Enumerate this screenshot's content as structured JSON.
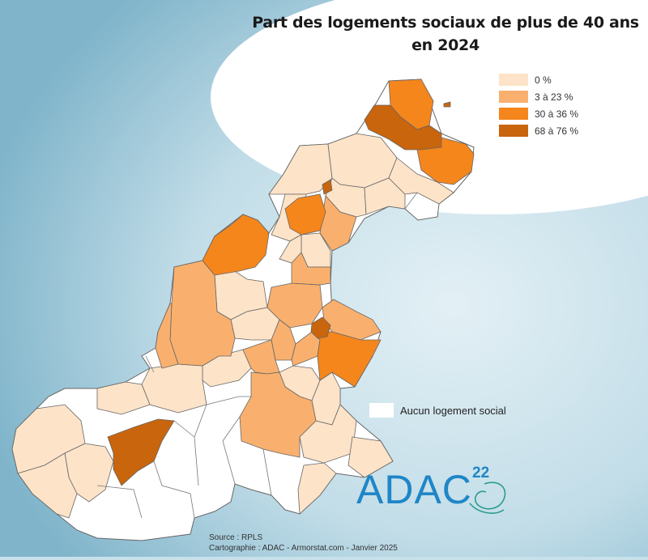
{
  "title_line1": "Part des logements sociaux de plus de 40 ans",
  "title_line2": "en 2024",
  "legend": [
    {
      "label": "0 %",
      "color": "#fde3c8"
    },
    {
      "label": "3 à 23 %",
      "color": "#f9b06e"
    },
    {
      "label": "30 à 36 %",
      "color": "#f5861c"
    },
    {
      "label": "68 à 76 %",
      "color": "#c9650c"
    }
  ],
  "no_value_label": "Aucun logement social",
  "no_value_color": "#ffffff",
  "source": "Source : RPLS",
  "credit": "Cartographie : ADAC - Armorstat.com - Janvier 2025",
  "logo_text": "ADAC",
  "logo_number": "22",
  "colors": {
    "sea": "#7fb6cb",
    "border": "#666666"
  }
}
